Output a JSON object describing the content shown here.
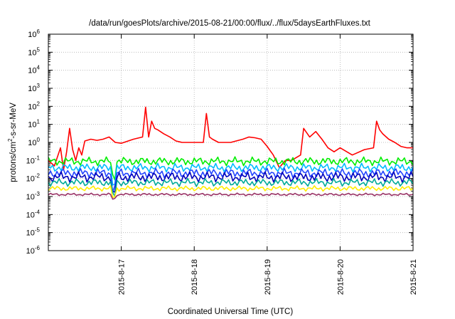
{
  "chart_data": {
    "type": "line",
    "title": "/data/run/goesPlots/archive/2015-08-21/00:00/flux/../flux/5daysEarthFluxes.txt",
    "xlabel": "Coordinated Universal Time (UTC)",
    "ylabel_parts": [
      "protons/cm",
      "2",
      "-s-sr-MeV"
    ],
    "y_scale": "log",
    "ylim": [
      1e-06,
      1000000.0
    ],
    "y_ticks": [
      {
        "base": "10",
        "exp": "6",
        "value": 1000000.0
      },
      {
        "base": "10",
        "exp": "5",
        "value": 100000.0
      },
      {
        "base": "10",
        "exp": "4",
        "value": 10000.0
      },
      {
        "base": "10",
        "exp": "3",
        "value": 1000.0
      },
      {
        "base": "10",
        "exp": "2",
        "value": 100.0
      },
      {
        "base": "10",
        "exp": "1",
        "value": 10.0
      },
      {
        "base": "10",
        "exp": "0",
        "value": 1
      },
      {
        "base": "10",
        "exp": "-1",
        "value": 0.1
      },
      {
        "base": "10",
        "exp": "-2",
        "value": 0.01
      },
      {
        "base": "10",
        "exp": "-3",
        "value": 0.001
      },
      {
        "base": "10",
        "exp": "-4",
        "value": 0.0001
      },
      {
        "base": "10",
        "exp": "-5",
        "value": 1e-05
      },
      {
        "base": "10",
        "exp": "-6",
        "value": 1e-06
      }
    ],
    "xlim": [
      "2015-08-16 00:00",
      "2015-08-21 00:00"
    ],
    "x_ticks": [
      "2015-8-17",
      "2015-8-18",
      "2015-8-19",
      "2015-8-20",
      "2015-8-21"
    ],
    "x_tick_dates": [
      "2015-08-17",
      "2015-08-18",
      "2015-08-19",
      "2015-08-20",
      "2015-08-21"
    ],
    "grid": true,
    "legend": "none",
    "series": [
      {
        "color": "#ff0000",
        "x": [
          "2015-08-16 00:00",
          "2015-08-16 02:00",
          "2015-08-16 04:00",
          "2015-08-16 05:00",
          "2015-08-16 06:00",
          "2015-08-16 07:00",
          "2015-08-16 08:00",
          "2015-08-16 09:00",
          "2015-08-16 10:00",
          "2015-08-16 11:00",
          "2015-08-16 12:00",
          "2015-08-16 14:00",
          "2015-08-16 16:00",
          "2015-08-16 18:00",
          "2015-08-16 20:00",
          "2015-08-16 22:00",
          "2015-08-17 00:00",
          "2015-08-17 04:00",
          "2015-08-17 07:00",
          "2015-08-17 08:00",
          "2015-08-17 09:00",
          "2015-08-17 10:00",
          "2015-08-17 11:00",
          "2015-08-17 12:00",
          "2015-08-17 14:00",
          "2015-08-17 16:00",
          "2015-08-17 18:00",
          "2015-08-17 20:00",
          "2015-08-17 22:00",
          "2015-08-18 00:00",
          "2015-08-18 03:00",
          "2015-08-18 04:00",
          "2015-08-18 05:00",
          "2015-08-18 06:00",
          "2015-08-18 08:00",
          "2015-08-18 12:00",
          "2015-08-18 16:00",
          "2015-08-18 18:00",
          "2015-08-18 20:00",
          "2015-08-18 22:00",
          "2015-08-19 00:00",
          "2015-08-19 02:00",
          "2015-08-19 04:00",
          "2015-08-19 06:00",
          "2015-08-19 08:00",
          "2015-08-19 11:00",
          "2015-08-19 12:00",
          "2015-08-19 14:00",
          "2015-08-19 16:00",
          "2015-08-19 18:00",
          "2015-08-19 20:00",
          "2015-08-19 22:00",
          "2015-08-20 00:00",
          "2015-08-20 04:00",
          "2015-08-20 08:00",
          "2015-08-20 11:00",
          "2015-08-20 12:00",
          "2015-08-20 13:00",
          "2015-08-20 14:00",
          "2015-08-20 16:00",
          "2015-08-20 18:00",
          "2015-08-20 20:00",
          "2015-08-20 22:00",
          "2015-08-21 00:00"
        ],
        "y": [
          0.1,
          0.05,
          0.5,
          0.03,
          0.3,
          6,
          0.4,
          0.1,
          0.5,
          0.2,
          1.2,
          1.5,
          1.3,
          1.5,
          2,
          1,
          0.9,
          1.5,
          2,
          90,
          2,
          15,
          6,
          5,
          3,
          2,
          1.2,
          1,
          1,
          1,
          1,
          40,
          2,
          1.5,
          1,
          1,
          1.5,
          2,
          1.8,
          1.5,
          0.6,
          0.2,
          0.04,
          0.1,
          0.1,
          0.2,
          6,
          2,
          4,
          1.5,
          0.5,
          0.3,
          0.5,
          0.2,
          0.4,
          0.5,
          15,
          5,
          3,
          1.5,
          1,
          0.6,
          0.5,
          0.5
        ]
      },
      {
        "color": "#00ee00",
        "base": 0.09,
        "amp": 0.5
      },
      {
        "color": "#00bbff",
        "base": 0.04,
        "amp": 0.5
      },
      {
        "color": "#2244ff",
        "base": 0.02,
        "amp": 0.55
      },
      {
        "color": "#0000bb",
        "base": 0.012,
        "amp": 0.6
      },
      {
        "color": "#00aa99",
        "base": 0.006,
        "amp": 0.45
      },
      {
        "color": "#ffee00",
        "base": 0.0028,
        "amp": 0.3
      },
      {
        "color": "#993366",
        "base": 0.0013,
        "amp": 0.15
      }
    ]
  }
}
